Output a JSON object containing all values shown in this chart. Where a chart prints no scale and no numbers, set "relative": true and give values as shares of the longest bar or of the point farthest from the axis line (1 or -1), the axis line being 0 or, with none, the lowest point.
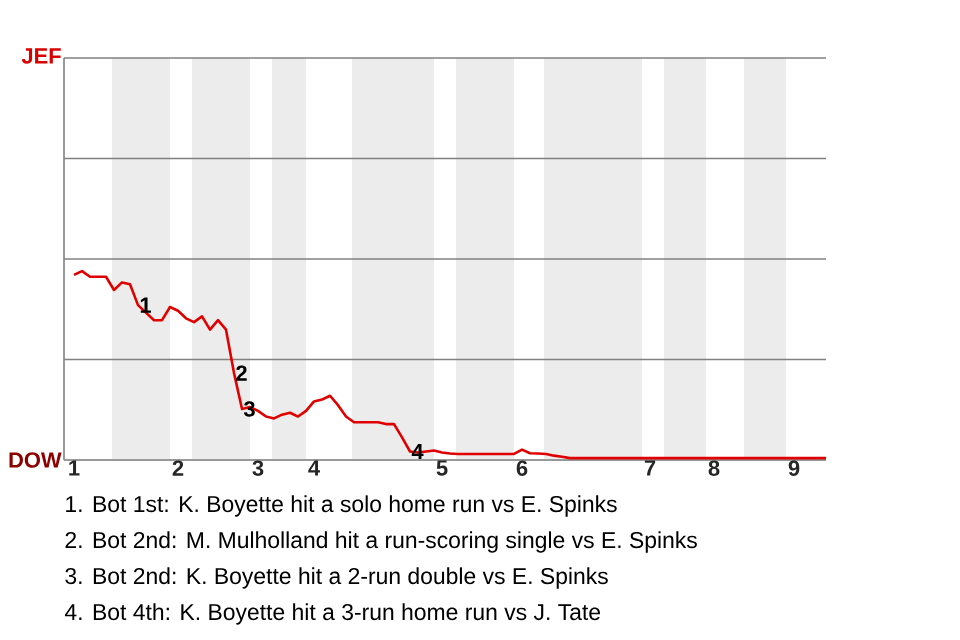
{
  "chart_data": {
    "type": "line",
    "relative": true,
    "ref_lines": [
      {
        "axis": "y",
        "value": 0.532,
        "color": "#808080"
      },
      {
        "axis": "y",
        "value": 1.064,
        "color": "#808080"
      },
      {
        "axis": "y",
        "value": 1.596,
        "color": "#808080"
      },
      {
        "axis": "y",
        "value": 2.128,
        "color": "#808080"
      }
    ],
    "categories": [
      "1",
      null,
      null,
      null,
      null,
      null,
      null,
      null,
      null,
      null,
      null,
      null,
      null,
      "2",
      null,
      null,
      null,
      null,
      null,
      null,
      null,
      null,
      null,
      "3",
      null,
      null,
      null,
      null,
      null,
      null,
      "4",
      null,
      null,
      null,
      null,
      null,
      null,
      null,
      null,
      null,
      null,
      null,
      null,
      null,
      null,
      null,
      "5",
      null,
      null,
      null,
      null,
      null,
      null,
      null,
      null,
      null,
      "6",
      null,
      null,
      null,
      null,
      null,
      null,
      null,
      null,
      null,
      null,
      null,
      null,
      null,
      null,
      null,
      "7",
      null,
      null,
      null,
      null,
      null,
      null,
      null,
      "8",
      null,
      null,
      null,
      null,
      null,
      null,
      null,
      null,
      null,
      "9",
      null,
      null,
      null,
      null
    ],
    "series": [
      {
        "color": "#e00000",
        "values": [
          0.98,
          1,
          0.97,
          0.97,
          0.97,
          0.9,
          0.94,
          0.93,
          0.82,
          0.78,
          0.74,
          0.74,
          0.81,
          0.79,
          0.75,
          0.73,
          0.76,
          0.69,
          0.74,
          0.69,
          0.46,
          0.27,
          0.28,
          0.26,
          0.23,
          0.22,
          0.24,
          0.25,
          0.23,
          0.26,
          0.31,
          0.32,
          0.34,
          0.29,
          0.23,
          0.2,
          0.2,
          0.2,
          0.2,
          0.19,
          0.19,
          0.12,
          0.045,
          0.04,
          0.045,
          0.05,
          0.04,
          0.034,
          0.032,
          0.032,
          0.032,
          0.032,
          0.032,
          0.032,
          0.032,
          0.032,
          0.055,
          0.036,
          0.034,
          0.032,
          0.023,
          0.017,
          0.01,
          0.01,
          0.01,
          0.01,
          0.01,
          0.01,
          0.01,
          0.01,
          0.01,
          0.01,
          0.01,
          0.01,
          0.01,
          0.01,
          0.01,
          0.01,
          0.01,
          0.01,
          0.01,
          0.01,
          0.01,
          0.01,
          0.01,
          0.01,
          0.01,
          0.01,
          0.01,
          0.01,
          0.01,
          0.01,
          0.01,
          0.01,
          0.01
        ]
      }
    ],
    "annotations": [
      {
        "text": "1",
        "y": 0.82
      },
      {
        "text": "2",
        "y": 0.46
      },
      {
        "text": "3",
        "y": 0.27
      },
      {
        "text": "4",
        "y": 0.045
      },
      "JEF",
      "DOW",
      "1. Bot 1st: K. Boyette hit a solo home run vs E. Spinks",
      "2. Bot 2nd: M. Mulholland hit a run-scoring single vs E. Spinks",
      "3. Bot 2nd: K. Boyette hit a 2-run double vs E. Spinks",
      "4. Bot 4th: K. Boyette hit a 3-run home run vs J. Tate"
    ]
  }
}
